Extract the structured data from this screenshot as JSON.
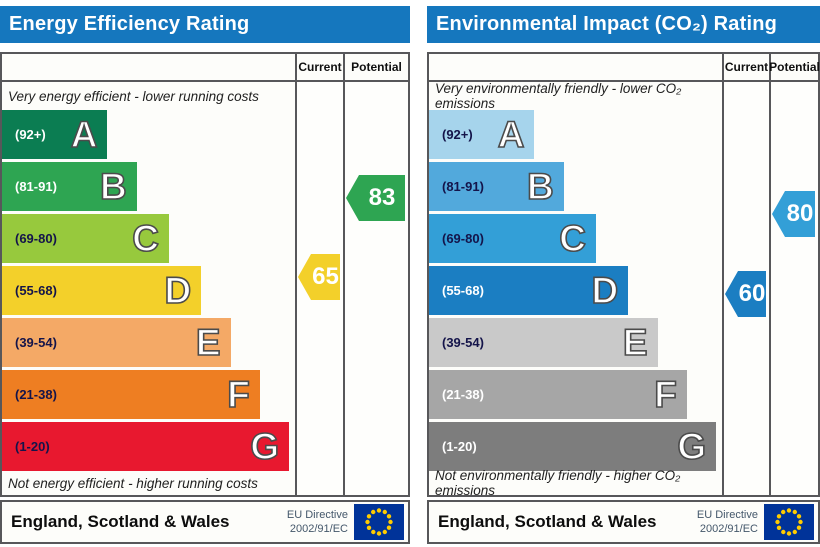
{
  "chart_data": [
    {
      "type": "bar",
      "title": "Energy Efficiency Rating",
      "header_color": "#1577be",
      "columns": {
        "current": "Current",
        "potential": "Potential"
      },
      "top_caption": "Very energy efficient - lower running costs",
      "bottom_caption": "Not energy efficient - higher running costs",
      "bands": [
        {
          "letter": "A",
          "range_label": "(92+)",
          "min": 92,
          "max": 100,
          "color": "#0b7d52",
          "label_color": "#ffffff",
          "width_pct": 36
        },
        {
          "letter": "B",
          "range_label": "(81-91)",
          "min": 81,
          "max": 91,
          "color": "#2ea552",
          "label_color": "#ffffff",
          "width_pct": 46
        },
        {
          "letter": "C",
          "range_label": "(69-80)",
          "min": 69,
          "max": 80,
          "color": "#97c93d",
          "label_color": "#14144a",
          "width_pct": 57
        },
        {
          "letter": "D",
          "range_label": "(55-68)",
          "min": 55,
          "max": 68,
          "color": "#f3d02a",
          "label_color": "#14144a",
          "width_pct": 68
        },
        {
          "letter": "E",
          "range_label": "(39-54)",
          "min": 39,
          "max": 54,
          "color": "#f4a966",
          "label_color": "#14144a",
          "width_pct": 78
        },
        {
          "letter": "F",
          "range_label": "(21-38)",
          "min": 21,
          "max": 38,
          "color": "#ee7e22",
          "label_color": "#14144a",
          "width_pct": 88
        },
        {
          "letter": "G",
          "range_label": "(1-20)",
          "min": 1,
          "max": 20,
          "color": "#e8182f",
          "label_color": "#14144a",
          "width_pct": 98
        }
      ],
      "current": {
        "value": 65,
        "color": "#f3d02a"
      },
      "potential": {
        "value": 83,
        "color": "#2ea552"
      },
      "region": "England, Scotland & Wales",
      "directive": {
        "line1": "EU Directive",
        "line2": "2002/91/EC"
      },
      "flag": {
        "field": "#003399",
        "stars": "#ffcc00"
      }
    },
    {
      "type": "bar",
      "title": "Environmental Impact (CO₂) Rating",
      "header_color": "#1577be",
      "columns": {
        "current": "Current",
        "potential": "Potential"
      },
      "top_caption": "Very environmentally friendly - lower CO₂ emissions",
      "bottom_caption": "Not environmentally friendly - higher CO₂ emissions",
      "bands": [
        {
          "letter": "A",
          "range_label": "(92+)",
          "min": 92,
          "max": 100,
          "color": "#a6d4ec",
          "label_color": "#14144a",
          "width_pct": 36
        },
        {
          "letter": "B",
          "range_label": "(81-91)",
          "min": 81,
          "max": 91,
          "color": "#52a9dc",
          "label_color": "#14144a",
          "width_pct": 46
        },
        {
          "letter": "C",
          "range_label": "(69-80)",
          "min": 69,
          "max": 80,
          "color": "#339fd7",
          "label_color": "#14144a",
          "width_pct": 57
        },
        {
          "letter": "D",
          "range_label": "(55-68)",
          "min": 55,
          "max": 68,
          "color": "#1b7ec2",
          "label_color": "#ffffff",
          "width_pct": 68
        },
        {
          "letter": "E",
          "range_label": "(39-54)",
          "min": 39,
          "max": 54,
          "color": "#c9c9c9",
          "label_color": "#14144a",
          "width_pct": 78
        },
        {
          "letter": "F",
          "range_label": "(21-38)",
          "min": 21,
          "max": 38,
          "color": "#a6a6a6",
          "label_color": "#ffffff",
          "width_pct": 88
        },
        {
          "letter": "G",
          "range_label": "(1-20)",
          "min": 1,
          "max": 20,
          "color": "#7d7d7d",
          "label_color": "#ffffff",
          "width_pct": 98
        }
      ],
      "current": {
        "value": 60,
        "color": "#1b7ec2"
      },
      "potential": {
        "value": 80,
        "color": "#339fd7"
      },
      "region": "England, Scotland & Wales",
      "directive": {
        "line1": "EU Directive",
        "line2": "2002/91/EC"
      },
      "flag": {
        "field": "#003399",
        "stars": "#ffcc00"
      }
    }
  ]
}
